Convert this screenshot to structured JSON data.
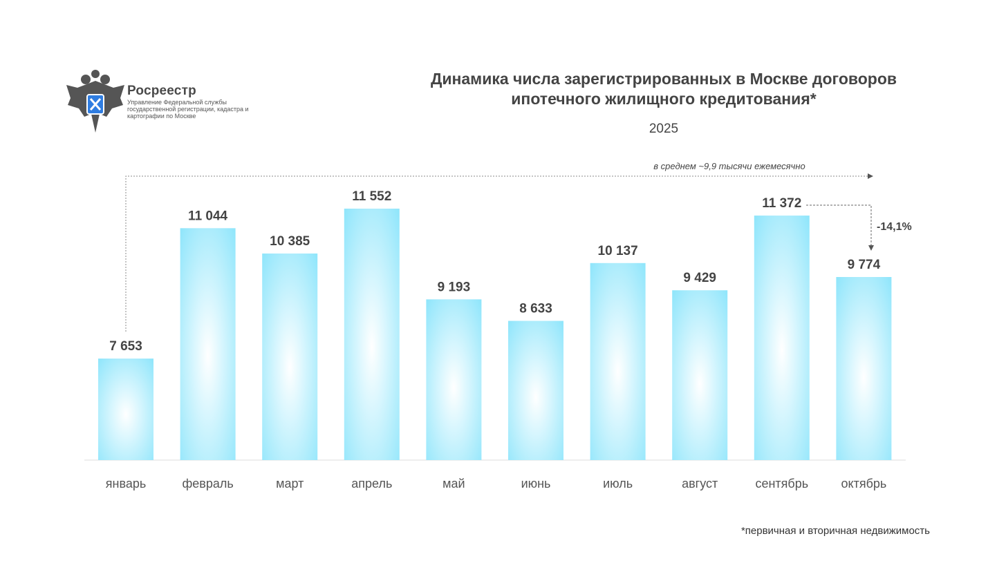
{
  "logo": {
    "name": "Росреестр",
    "subtitle": "Управление Федеральной службы государственной регистрации, кадастра и картографии по Москве"
  },
  "footnote": "*первичная и вторичная недвижимость",
  "colors": {
    "bar": "#8de5fb",
    "bar_center": "#ffffff",
    "text": "#444444",
    "axis": "#dddddd"
  },
  "chart_data": {
    "type": "bar",
    "title": "Динамика числа зарегистрированных в Москве договоров ипотечного жилищного кредитования*",
    "subtitle": "2025",
    "categories": [
      "январь",
      "февраль",
      "март",
      "апрель",
      "май",
      "июнь",
      "июль",
      "август",
      "сентябрь",
      "октябрь"
    ],
    "values": [
      7653,
      11044,
      10385,
      11552,
      9193,
      8633,
      10137,
      9429,
      11372,
      9774
    ],
    "labels": [
      "7 653",
      "11 044",
      "10 385",
      "11 552",
      "9 193",
      "8 633",
      "10 137",
      "9 429",
      "11 372",
      "9 774"
    ],
    "ylim": [
      5013,
      12000
    ],
    "xlabel": "",
    "ylabel": "",
    "grid": false,
    "annotations": {
      "average": "в среднем ~9,9 тысячи ежемесячно",
      "change": "-14,1%"
    }
  }
}
